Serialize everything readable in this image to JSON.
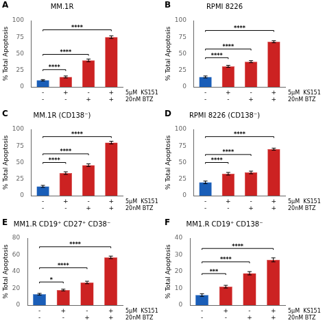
{
  "chart_data": [
    {
      "type": "bar",
      "panel_label": "A",
      "title": "MM.1R",
      "ylabel": "% Total Apoptosis",
      "categories": [
        [
          "-",
          "-"
        ],
        [
          "+",
          "-"
        ],
        [
          "-",
          "+"
        ],
        [
          "+",
          "+"
        ]
      ],
      "category_rows": [
        "5μM  KS151",
        "20nM BTZ"
      ],
      "values": [
        10,
        15,
        40,
        75
      ],
      "errors": [
        1,
        1.5,
        2,
        2
      ],
      "colors": [
        "#1a5eb8",
        "#cc2222",
        "#cc2222",
        "#cc2222"
      ],
      "ylim": [
        0,
        100
      ],
      "yticks": [
        0,
        25,
        50,
        75,
        100
      ],
      "grid": false,
      "annotations": [
        {
          "x1": 0,
          "x2": 1,
          "y": 24,
          "label": "****"
        },
        {
          "x1": 0,
          "x2": 2,
          "y": 47,
          "label": "****"
        },
        {
          "x1": 0,
          "x2": 3,
          "y": 84,
          "label": "****"
        }
      ]
    },
    {
      "type": "bar",
      "panel_label": "B",
      "title": "RPMI 8226",
      "ylabel": "% Total Apoptosis",
      "categories": [
        [
          "-",
          "-"
        ],
        [
          "+",
          "-"
        ],
        [
          "-",
          "+"
        ],
        [
          "+",
          "+"
        ]
      ],
      "category_rows": [
        "5μM  KS151",
        "20nM BTZ"
      ],
      "values": [
        15,
        31,
        38,
        68
      ],
      "errors": [
        1.5,
        1.5,
        1.5,
        1.5
      ],
      "colors": [
        "#1a5eb8",
        "#cc2222",
        "#cc2222",
        "#cc2222"
      ],
      "ylim": [
        0,
        100
      ],
      "yticks": [
        0,
        25,
        50,
        75,
        100
      ],
      "grid": false,
      "annotations": [
        {
          "x1": 0,
          "x2": 1,
          "y": 42,
          "label": "****"
        },
        {
          "x1": 0,
          "x2": 2,
          "y": 55,
          "label": "****"
        },
        {
          "x1": 0,
          "x2": 3,
          "y": 83,
          "label": "****"
        }
      ]
    },
    {
      "type": "bar",
      "panel_label": "C",
      "title": "MM.1R (CD138⁻)",
      "ylabel": "% Total Apoptosis",
      "categories": [
        [
          "-",
          "-"
        ],
        [
          "+",
          "-"
        ],
        [
          "-",
          "+"
        ],
        [
          "+",
          "+"
        ]
      ],
      "category_rows": [
        "5μM  KS151",
        "20nM BTZ"
      ],
      "values": [
        14,
        34,
        46,
        80
      ],
      "errors": [
        1.5,
        2,
        2,
        2
      ],
      "colors": [
        "#1a5eb8",
        "#cc2222",
        "#cc2222",
        "#cc2222"
      ],
      "ylim": [
        0,
        100
      ],
      "yticks": [
        0,
        25,
        50,
        75,
        100
      ],
      "grid": false,
      "annotations": [
        {
          "x1": 0,
          "x2": 1,
          "y": 48,
          "label": "****"
        },
        {
          "x1": 0,
          "x2": 2,
          "y": 61,
          "label": "****"
        },
        {
          "x1": 0,
          "x2": 3,
          "y": 87,
          "label": "****"
        }
      ]
    },
    {
      "type": "bar",
      "panel_label": "D",
      "title": "RPMI 8226 (CD138⁻)",
      "ylabel": "% Total Apoptosis",
      "categories": [
        [
          "-",
          "-"
        ],
        [
          "+",
          "-"
        ],
        [
          "-",
          "+"
        ],
        [
          "+",
          "+"
        ]
      ],
      "category_rows": [
        "5μM  KS151",
        "20nM BTZ"
      ],
      "values": [
        20,
        33,
        35,
        70
      ],
      "errors": [
        2,
        2,
        2,
        1.5
      ],
      "colors": [
        "#1a5eb8",
        "#cc2222",
        "#cc2222",
        "#cc2222"
      ],
      "ylim": [
        0,
        100
      ],
      "yticks": [
        0,
        25,
        50,
        75,
        100
      ],
      "grid": false,
      "annotations": [
        {
          "x1": 0,
          "x2": 1,
          "y": 48,
          "label": "****"
        },
        {
          "x1": 0,
          "x2": 2,
          "y": 60,
          "label": "****"
        },
        {
          "x1": 0,
          "x2": 3,
          "y": 87,
          "label": "****"
        }
      ]
    },
    {
      "type": "bar",
      "panel_label": "E",
      "title": "MM1.R CD19⁺ CD27⁺ CD38⁻",
      "ylabel": "% Total Apoptosis",
      "categories": [
        [
          "-",
          "-"
        ],
        [
          "+",
          "-"
        ],
        [
          "-",
          "+"
        ],
        [
          "+",
          "+"
        ]
      ],
      "category_rows": [
        "5μM  KS151",
        "20nM BTZ"
      ],
      "values": [
        13,
        18,
        27,
        57
      ],
      "errors": [
        1,
        1,
        1.5,
        1.5
      ],
      "colors": [
        "#1a5eb8",
        "#cc2222",
        "#cc2222",
        "#cc2222"
      ],
      "ylim": [
        0,
        80
      ],
      "yticks": [
        0,
        20,
        40,
        60,
        80
      ],
      "grid": false,
      "annotations": [
        {
          "x1": 0,
          "x2": 1,
          "y": 26,
          "label": "*"
        },
        {
          "x1": 0,
          "x2": 2,
          "y": 43,
          "label": "****"
        },
        {
          "x1": 0,
          "x2": 3,
          "y": 68,
          "label": "****"
        }
      ]
    },
    {
      "type": "bar",
      "panel_label": "F",
      "title": "MM1.R CD19⁺ CD138⁻",
      "ylabel": "% Total Apoptosis",
      "categories": [
        [
          "-",
          "-"
        ],
        [
          "+",
          "-"
        ],
        [
          "-",
          "+"
        ],
        [
          "+",
          "+"
        ]
      ],
      "category_rows": [
        "5μM  KS151",
        "20nM BTZ"
      ],
      "values": [
        6,
        11,
        19,
        27
      ],
      "errors": [
        0.8,
        0.8,
        1,
        1.2
      ],
      "colors": [
        "#1a5eb8",
        "#cc2222",
        "#cc2222",
        "#cc2222"
      ],
      "ylim": [
        0,
        40
      ],
      "yticks": [
        0,
        10,
        20,
        30,
        40
      ],
      "grid": false,
      "annotations": [
        {
          "x1": 0,
          "x2": 1,
          "y": 18,
          "label": "***"
        },
        {
          "x1": 0,
          "x2": 2,
          "y": 25,
          "label": "****"
        },
        {
          "x1": 0,
          "x2": 3,
          "y": 33,
          "label": "****"
        }
      ]
    }
  ]
}
